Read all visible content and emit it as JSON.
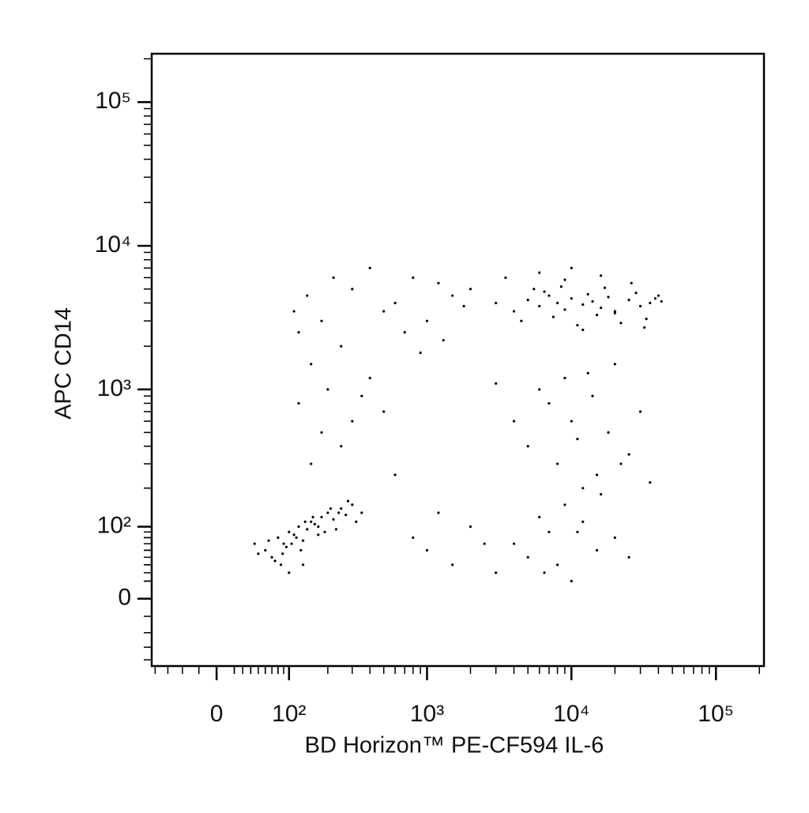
{
  "chart_data": {
    "type": "scatter",
    "xlabel": "BD Horizon™ PE-CF594 IL-6",
    "ylabel": "APC CD14",
    "xscale": "biexponential",
    "yscale": "biexponential",
    "color": "#000000",
    "xlim": [
      -86,
      215000
    ],
    "ylim": [
      -91,
      217000
    ],
    "xticks": [
      0,
      {
        "value": 100,
        "label": "10²"
      },
      {
        "value": 1000,
        "label": "10³"
      },
      {
        "value": 10000,
        "label": "10⁴"
      },
      {
        "value": 100000,
        "label": "10⁵"
      }
    ],
    "yticks": [
      0,
      {
        "value": 100,
        "label": "10²"
      },
      {
        "value": 1000,
        "label": "10³"
      },
      {
        "value": 10000,
        "label": "10⁴"
      },
      {
        "value": 100000,
        "label": "10⁵"
      }
    ],
    "x": [
      60,
      80,
      90,
      100,
      120,
      150,
      70,
      110,
      130,
      180,
      200,
      250,
      300,
      85,
      95,
      140,
      160,
      220,
      270,
      50,
      75,
      105,
      125,
      170,
      190,
      240,
      65,
      88,
      115,
      135,
      155,
      210,
      280,
      350,
      45,
      100,
      130,
      170,
      230,
      320,
      3000,
      4000,
      5000,
      6000,
      7000,
      8000,
      9000,
      10000,
      12000,
      14000,
      16000,
      18000,
      20000,
      25000,
      30000,
      35000,
      40000,
      4500,
      5500,
      6500,
      7500,
      8500,
      11000,
      13000,
      15000,
      17000,
      22000,
      28000,
      33000,
      38000,
      3500,
      6000,
      9000,
      12000,
      16000,
      20000,
      26000,
      32000,
      42000,
      10000,
      110,
      120,
      140,
      180,
      220,
      300,
      400,
      500,
      600,
      800,
      1000,
      1200,
      1500,
      1800,
      2000,
      150,
      250,
      700,
      900,
      1300,
      5000,
      7000,
      8000,
      9000,
      10000,
      12000,
      14000,
      15000,
      18000,
      20000,
      25000,
      30000,
      6000,
      11000,
      16000,
      22000,
      4000,
      3000,
      35000,
      13000,
      800,
      1000,
      1500,
      2000,
      3000,
      4000,
      5000,
      6000,
      7000,
      8000,
      9000,
      10000,
      12000,
      15000,
      20000,
      25000,
      1200,
      2500,
      6500,
      11000,
      120,
      150,
      200,
      250,
      300,
      400,
      500,
      600,
      180,
      350
    ],
    "values": [
      60,
      80,
      70,
      90,
      100,
      110,
      50,
      85,
      75,
      120,
      130,
      140,
      150,
      40,
      65,
      95,
      105,
      115,
      125,
      55,
      45,
      70,
      60,
      100,
      90,
      130,
      75,
      55,
      80,
      110,
      120,
      140,
      160,
      130,
      70,
      30,
      40,
      85,
      95,
      110,
      4000,
      3500,
      4200,
      3800,
      4500,
      4000,
      3600,
      4300,
      3900,
      4100,
      3700,
      4400,
      3500,
      4200,
      3800,
      4000,
      4500,
      3000,
      5000,
      4800,
      3200,
      5200,
      2800,
      4600,
      3300,
      5100,
      2900,
      4700,
      3100,
      4300,
      6000,
      6500,
      5800,
      2600,
      6200,
      3400,
      5500,
      2700,
      4100,
      7000,
      3500,
      2500,
      4500,
      3000,
      6000,
      5000,
      7000,
      3500,
      4000,
      6000,
      3000,
      5500,
      4500,
      3800,
      5000,
      1500,
      2000,
      2500,
      1800,
      2200,
      400,
      800,
      300,
      1200,
      600,
      200,
      900,
      250,
      500,
      1500,
      350,
      700,
      1000,
      450,
      180,
      300,
      600,
      1100,
      220,
      1300,
      80,
      60,
      40,
      100,
      30,
      70,
      50,
      120,
      90,
      40,
      150,
      20,
      110,
      60,
      80,
      50,
      130,
      70,
      30,
      90,
      800,
      300,
      1000,
      400,
      600,
      1200,
      700,
      250,
      500,
      900
    ]
  }
}
